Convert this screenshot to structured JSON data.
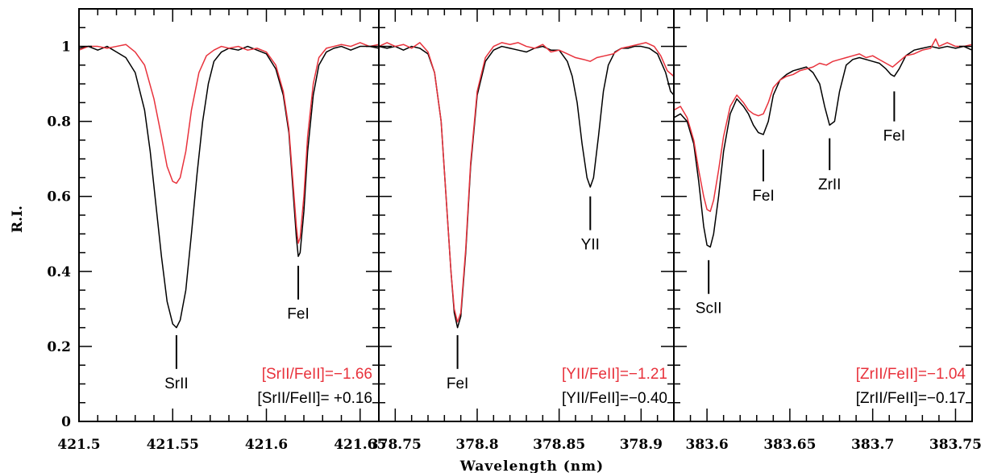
{
  "figure": {
    "ylabel": "R.I.",
    "xlabel": "Wavelength (nm)",
    "colors": {
      "star_red": "#e8323c",
      "star_black": "#000000"
    },
    "yticks": [
      "0",
      "0.2",
      "0.4",
      "0.6",
      "0.8",
      "1"
    ]
  },
  "chart_data": [
    {
      "type": "line",
      "xlim": [
        421.5,
        421.66
      ],
      "ylim": [
        0,
        1.1
      ],
      "xticks": [
        "421.5",
        "421.55",
        "421.6",
        "421.65"
      ],
      "lines": [
        {
          "name": "SrII",
          "x": 421.552,
          "y_top": 0.23,
          "y_bot": 0.14
        },
        {
          "name": "FeI",
          "x": 421.617,
          "y_top": 0.415,
          "y_bot": 0.325
        }
      ],
      "annotations": [
        {
          "text": "[SrII/FeII]=−1.66",
          "color": "red"
        },
        {
          "text": "[SrII/FeII]= +0.16",
          "color": "black"
        }
      ],
      "series": [
        {
          "color": "black",
          "x": [
            421.5,
            421.505,
            421.51,
            421.515,
            421.52,
            421.525,
            421.53,
            421.535,
            421.538,
            421.541,
            421.544,
            421.547,
            421.55,
            421.552,
            421.554,
            421.557,
            421.56,
            421.563,
            421.566,
            421.569,
            421.572,
            421.576,
            421.58,
            421.585,
            421.59,
            421.595,
            421.6,
            421.605,
            421.609,
            421.612,
            421.614,
            421.616,
            421.617,
            421.618,
            421.62,
            421.622,
            421.625,
            421.628,
            421.632,
            421.636,
            421.64,
            421.645,
            421.65,
            421.655,
            421.66
          ],
          "y": [
            0.995,
            1.0,
            0.99,
            1.0,
            0.985,
            0.97,
            0.93,
            0.83,
            0.72,
            0.58,
            0.44,
            0.32,
            0.26,
            0.25,
            0.27,
            0.35,
            0.5,
            0.66,
            0.8,
            0.9,
            0.96,
            0.985,
            0.995,
            0.99,
            1.0,
            0.99,
            0.98,
            0.94,
            0.87,
            0.77,
            0.63,
            0.49,
            0.44,
            0.45,
            0.56,
            0.72,
            0.87,
            0.95,
            0.985,
            0.995,
            1.0,
            0.99,
            1.0,
            1.0,
            0.995
          ]
        },
        {
          "color": "red",
          "x": [
            421.5,
            421.505,
            421.51,
            421.515,
            421.52,
            421.525,
            421.53,
            421.535,
            421.54,
            421.544,
            421.547,
            421.55,
            421.552,
            421.554,
            421.557,
            421.56,
            421.564,
            421.568,
            421.572,
            421.576,
            421.58,
            421.585,
            421.59,
            421.595,
            421.6,
            421.605,
            421.609,
            421.612,
            421.614,
            421.616,
            421.617,
            421.618,
            421.62,
            421.622,
            421.625,
            421.628,
            421.632,
            421.636,
            421.64,
            421.645,
            421.65,
            421.655,
            421.66
          ],
          "y": [
            0.99,
            1.0,
            1.0,
            0.995,
            1.0,
            1.005,
            0.985,
            0.95,
            0.86,
            0.76,
            0.68,
            0.64,
            0.635,
            0.65,
            0.72,
            0.83,
            0.93,
            0.975,
            0.99,
            1.0,
            0.995,
            1.0,
            0.99,
            0.995,
            0.985,
            0.95,
            0.88,
            0.78,
            0.65,
            0.52,
            0.475,
            0.49,
            0.6,
            0.76,
            0.9,
            0.97,
            0.995,
            1.0,
            1.005,
            1.0,
            1.01,
            1.0,
            1.005
          ]
        }
      ]
    },
    {
      "type": "line",
      "xlim": [
        378.74,
        378.92
      ],
      "ylim": [
        0,
        1.1
      ],
      "xticks": [
        "378.75",
        "378.8",
        "378.85",
        "378.9"
      ],
      "lines": [
        {
          "name": "FeI",
          "x": 378.788,
          "y_top": 0.23,
          "y_bot": 0.14
        },
        {
          "name": "YII",
          "x": 378.869,
          "y_top": 0.6,
          "y_bot": 0.51
        }
      ],
      "annotations": [
        {
          "text": "[YII/FeII]=−1.21",
          "color": "red"
        },
        {
          "text": "[YII/FeII]=−0.40",
          "color": "black"
        }
      ],
      "series": [
        {
          "color": "black",
          "x": [
            378.74,
            378.745,
            378.75,
            378.755,
            378.76,
            378.765,
            378.77,
            378.774,
            378.778,
            378.781,
            378.784,
            378.786,
            378.788,
            378.79,
            378.793,
            378.796,
            378.8,
            378.805,
            378.81,
            378.815,
            378.82,
            378.825,
            378.83,
            378.835,
            378.84,
            378.845,
            378.85,
            378.855,
            378.858,
            378.861,
            378.864,
            378.867,
            378.869,
            378.871,
            378.874,
            378.877,
            378.88,
            378.884,
            378.888,
            378.892,
            378.896,
            378.9,
            378.905,
            378.91,
            378.915,
            378.918,
            378.92
          ],
          "y": [
            1.0,
            0.995,
            1.0,
            0.99,
            1.0,
            0.995,
            0.98,
            0.93,
            0.8,
            0.6,
            0.4,
            0.29,
            0.25,
            0.28,
            0.45,
            0.68,
            0.87,
            0.96,
            0.99,
            1.0,
            0.995,
            0.99,
            0.985,
            0.995,
            1.0,
            0.99,
            0.99,
            0.96,
            0.92,
            0.85,
            0.74,
            0.65,
            0.625,
            0.65,
            0.76,
            0.88,
            0.95,
            0.985,
            0.995,
            0.995,
            1.0,
            1.0,
            0.995,
            0.98,
            0.93,
            0.88,
            0.87
          ]
        },
        {
          "color": "red",
          "x": [
            378.74,
            378.745,
            378.75,
            378.755,
            378.76,
            378.765,
            378.77,
            378.774,
            378.778,
            378.781,
            378.784,
            378.786,
            378.788,
            378.79,
            378.793,
            378.796,
            378.8,
            378.805,
            378.81,
            378.815,
            378.82,
            378.825,
            378.83,
            378.835,
            378.84,
            378.845,
            378.85,
            378.855,
            378.86,
            378.865,
            378.869,
            378.873,
            378.878,
            378.883,
            378.888,
            378.893,
            378.898,
            378.903,
            378.908,
            378.912,
            378.916,
            378.92
          ],
          "y": [
            1.0,
            1.01,
            1.0,
            1.005,
            0.995,
            1.01,
            0.985,
            0.93,
            0.8,
            0.6,
            0.4,
            0.3,
            0.265,
            0.29,
            0.46,
            0.69,
            0.88,
            0.97,
            1.0,
            1.01,
            1.005,
            1.01,
            1.0,
            0.995,
            1.005,
            0.985,
            0.99,
            0.98,
            0.97,
            0.965,
            0.96,
            0.97,
            0.975,
            0.98,
            0.995,
            1.0,
            1.005,
            1.01,
            1.0,
            0.975,
            0.935,
            0.92
          ]
        }
      ]
    },
    {
      "type": "line",
      "xlim": [
        383.58,
        383.76
      ],
      "ylim": [
        0,
        1.1
      ],
      "xticks": [
        "383.6",
        "383.65",
        "383.7",
        "383.75"
      ],
      "lines": [
        {
          "name": "ScII",
          "x": 383.601,
          "y_top": 0.43,
          "y_bot": 0.34
        },
        {
          "name": "FeI",
          "x": 383.634,
          "y_top": 0.725,
          "y_bot": 0.64
        },
        {
          "name": "ZrII",
          "x": 383.674,
          "y_top": 0.755,
          "y_bot": 0.67
        },
        {
          "name": "FeI",
          "x": 383.713,
          "y_top": 0.88,
          "y_bot": 0.8
        }
      ],
      "annotations": [
        {
          "text": "[ZrII/FeII]=−1.04",
          "color": "red"
        },
        {
          "text": "[ZrII/FeII]=−0.17",
          "color": "black"
        }
      ],
      "series": [
        {
          "color": "black",
          "x": [
            383.58,
            383.584,
            383.588,
            383.592,
            383.595,
            383.598,
            383.6,
            383.602,
            383.604,
            383.607,
            383.61,
            383.614,
            383.618,
            383.622,
            383.625,
            383.628,
            383.631,
            383.634,
            383.637,
            383.64,
            383.644,
            383.648,
            383.652,
            383.656,
            383.66,
            383.664,
            383.668,
            383.671,
            383.674,
            383.677,
            383.68,
            383.684,
            383.688,
            383.692,
            383.696,
            383.7,
            383.704,
            383.708,
            383.711,
            383.713,
            383.716,
            383.72,
            383.725,
            383.73,
            383.735,
            383.74,
            383.745,
            383.75,
            383.755,
            383.76
          ],
          "y": [
            0.81,
            0.82,
            0.8,
            0.74,
            0.64,
            0.52,
            0.47,
            0.465,
            0.5,
            0.6,
            0.72,
            0.82,
            0.86,
            0.84,
            0.82,
            0.79,
            0.77,
            0.765,
            0.8,
            0.87,
            0.91,
            0.925,
            0.935,
            0.94,
            0.945,
            0.93,
            0.9,
            0.84,
            0.79,
            0.8,
            0.88,
            0.95,
            0.965,
            0.97,
            0.965,
            0.96,
            0.955,
            0.94,
            0.925,
            0.92,
            0.94,
            0.975,
            0.99,
            0.995,
            1.0,
            0.995,
            1.0,
            0.995,
            1.0,
            0.99
          ]
        },
        {
          "color": "red",
          "x": [
            383.58,
            383.584,
            383.588,
            383.592,
            383.595,
            383.598,
            383.6,
            383.602,
            383.604,
            383.607,
            383.61,
            383.614,
            383.618,
            383.622,
            383.625,
            383.628,
            383.631,
            383.634,
            383.637,
            383.64,
            383.644,
            383.648,
            383.652,
            383.656,
            383.66,
            383.664,
            383.668,
            383.672,
            383.676,
            383.68,
            383.684,
            383.688,
            383.692,
            383.696,
            383.7,
            383.704,
            383.708,
            383.712,
            383.716,
            383.72,
            383.725,
            383.73,
            383.735,
            383.738,
            383.74,
            383.745,
            383.75,
            383.755,
            383.76
          ],
          "y": [
            0.83,
            0.84,
            0.81,
            0.75,
            0.67,
            0.6,
            0.565,
            0.56,
            0.59,
            0.67,
            0.76,
            0.84,
            0.87,
            0.85,
            0.83,
            0.82,
            0.815,
            0.82,
            0.85,
            0.89,
            0.91,
            0.92,
            0.925,
            0.935,
            0.94,
            0.945,
            0.955,
            0.95,
            0.96,
            0.965,
            0.97,
            0.975,
            0.98,
            0.97,
            0.975,
            0.965,
            0.955,
            0.945,
            0.96,
            0.975,
            0.98,
            0.99,
            0.995,
            1.02,
            1.0,
            1.01,
            1.0,
            1.0,
            1.005
          ]
        }
      ]
    }
  ]
}
